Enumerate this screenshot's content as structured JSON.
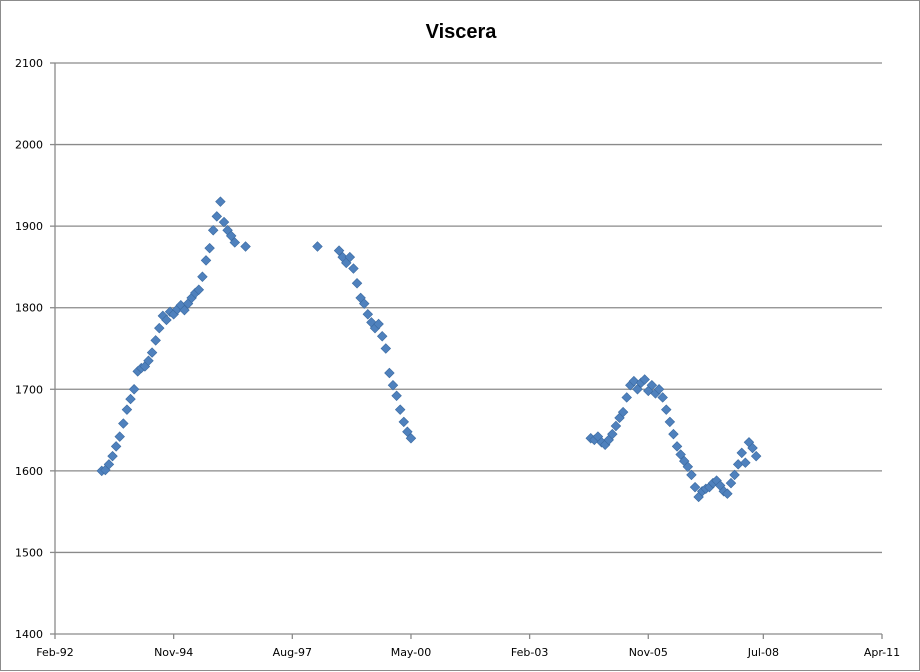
{
  "chart_data": {
    "type": "scatter",
    "title": "Viscera",
    "xlabel": "",
    "ylabel": "",
    "x_axis": {
      "type": "date",
      "range": [
        "1992-02",
        "2011-04"
      ],
      "tick_labels": [
        "Feb-92",
        "Nov-94",
        "Aug-97",
        "May-00",
        "Feb-03",
        "Nov-05",
        "Jul-08",
        "Apr-11"
      ],
      "tick_dates": [
        "1992-02",
        "1994-11",
        "1997-08",
        "2000-05",
        "2003-02",
        "2005-11",
        "2008-07",
        "2011-04"
      ]
    },
    "y_axis": {
      "range": [
        1400,
        2100
      ],
      "tick_labels": [
        "1400",
        "1500",
        "1600",
        "1700",
        "1800",
        "1900",
        "2000",
        "2100"
      ],
      "tick_values": [
        1400,
        1500,
        1600,
        1700,
        1800,
        1900,
        2000,
        2100
      ]
    },
    "grid": "horizontal",
    "marker": "diamond",
    "color": "#4f81bd",
    "series": [
      {
        "points": [
          [
            "1993-03",
            1600
          ],
          [
            "1993-04",
            1601
          ],
          [
            "1993-05",
            1608
          ],
          [
            "1993-06",
            1618
          ],
          [
            "1993-07",
            1630
          ],
          [
            "1993-08",
            1642
          ],
          [
            "1993-09",
            1658
          ],
          [
            "1993-10",
            1675
          ],
          [
            "1993-11",
            1688
          ],
          [
            "1993-12",
            1700
          ],
          [
            "1994-01",
            1722
          ],
          [
            "1994-02",
            1726
          ],
          [
            "1994-03",
            1728
          ],
          [
            "1994-04",
            1735
          ],
          [
            "1994-05",
            1745
          ],
          [
            "1994-06",
            1760
          ],
          [
            "1994-07",
            1775
          ],
          [
            "1994-08",
            1790
          ],
          [
            "1994-09",
            1785
          ],
          [
            "1994-10",
            1795
          ],
          [
            "1994-11",
            1792
          ],
          [
            "1994-12",
            1798
          ],
          [
            "1995-01",
            1803
          ],
          [
            "1995-02",
            1797
          ],
          [
            "1995-03",
            1805
          ],
          [
            "1995-04",
            1812
          ],
          [
            "1995-05",
            1818
          ],
          [
            "1995-06",
            1822
          ],
          [
            "1995-07",
            1838
          ],
          [
            "1995-08",
            1858
          ],
          [
            "1995-09",
            1873
          ],
          [
            "1995-10",
            1895
          ],
          [
            "1995-11",
            1912
          ],
          [
            "1995-12",
            1930
          ],
          [
            "1996-01",
            1905
          ],
          [
            "1996-02",
            1895
          ],
          [
            "1996-03",
            1888
          ],
          [
            "1996-04",
            1880
          ],
          [
            "1996-07",
            1875
          ]
        ]
      },
      {
        "points": [
          [
            "1998-03",
            1875
          ],
          [
            "1998-09",
            1870
          ],
          [
            "1998-10",
            1862
          ],
          [
            "1998-11",
            1855
          ],
          [
            "1998-12",
            1862
          ],
          [
            "1999-01",
            1848
          ],
          [
            "1999-02",
            1830
          ],
          [
            "1999-03",
            1812
          ],
          [
            "1999-04",
            1805
          ],
          [
            "1999-05",
            1792
          ],
          [
            "1999-06",
            1782
          ],
          [
            "1999-07",
            1775
          ],
          [
            "1999-08",
            1780
          ],
          [
            "1999-09",
            1765
          ],
          [
            "1999-10",
            1750
          ],
          [
            "1999-11",
            1720
          ],
          [
            "1999-12",
            1705
          ],
          [
            "2000-01",
            1692
          ],
          [
            "2000-02",
            1675
          ],
          [
            "2000-03",
            1660
          ],
          [
            "2000-04",
            1648
          ],
          [
            "2000-05",
            1640
          ]
        ]
      },
      {
        "points": [
          [
            "2004-07",
            1640
          ],
          [
            "2004-08",
            1638
          ],
          [
            "2004-09",
            1642
          ],
          [
            "2004-10",
            1635
          ],
          [
            "2004-11",
            1632
          ],
          [
            "2004-12",
            1638
          ],
          [
            "2005-01",
            1645
          ],
          [
            "2005-02",
            1655
          ],
          [
            "2005-03",
            1665
          ],
          [
            "2005-04",
            1672
          ],
          [
            "2005-05",
            1690
          ],
          [
            "2005-06",
            1705
          ],
          [
            "2005-07",
            1710
          ],
          [
            "2005-08",
            1700
          ],
          [
            "2005-09",
            1708
          ],
          [
            "2005-10",
            1712
          ],
          [
            "2005-11",
            1698
          ],
          [
            "2005-12",
            1705
          ],
          [
            "2006-01",
            1695
          ],
          [
            "2006-02",
            1700
          ],
          [
            "2006-03",
            1690
          ],
          [
            "2006-04",
            1675
          ],
          [
            "2006-05",
            1660
          ],
          [
            "2006-06",
            1645
          ],
          [
            "2006-07",
            1630
          ],
          [
            "2006-08",
            1620
          ],
          [
            "2006-09",
            1612
          ],
          [
            "2006-10",
            1605
          ],
          [
            "2006-11",
            1595
          ],
          [
            "2006-12",
            1580
          ],
          [
            "2007-01",
            1568
          ],
          [
            "2007-02",
            1575
          ],
          [
            "2007-03",
            1578
          ],
          [
            "2007-04",
            1580
          ],
          [
            "2007-05",
            1585
          ],
          [
            "2007-06",
            1588
          ],
          [
            "2007-07",
            1582
          ],
          [
            "2007-08",
            1575
          ],
          [
            "2007-09",
            1572
          ],
          [
            "2007-10",
            1585
          ],
          [
            "2007-11",
            1595
          ],
          [
            "2007-12",
            1608
          ],
          [
            "2008-01",
            1622
          ],
          [
            "2008-02",
            1610
          ],
          [
            "2008-03",
            1635
          ],
          [
            "2008-04",
            1628
          ],
          [
            "2008-05",
            1618
          ]
        ]
      }
    ]
  }
}
